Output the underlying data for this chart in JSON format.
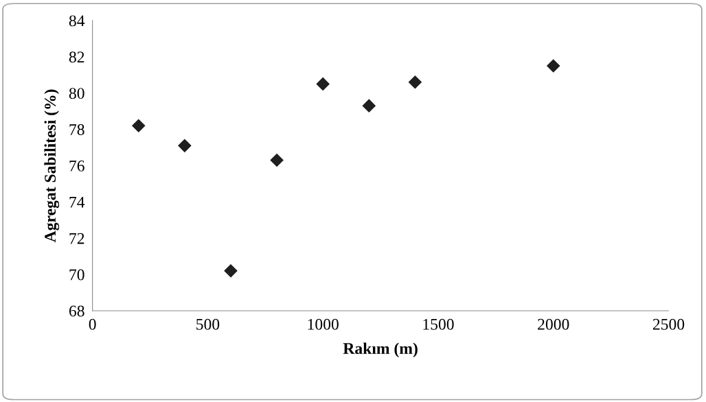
{
  "chart_data": {
    "type": "scatter",
    "xlabel": "Rakım (m)",
    "ylabel": "Agregat Sabilitesi (%)",
    "x": [
      200,
      400,
      600,
      800,
      1000,
      1200,
      1400,
      2000
    ],
    "values": [
      78.2,
      77.1,
      70.2,
      76.3,
      80.5,
      79.3,
      80.6,
      81.5
    ],
    "color": "#1f1f1f",
    "marker": "diamond",
    "xlim": [
      0,
      2500
    ],
    "xticks": [
      0,
      500,
      1000,
      1500,
      2000,
      2500
    ],
    "ylim": [
      68,
      84
    ],
    "yticks": [
      68,
      70,
      72,
      74,
      76,
      78,
      80,
      82,
      84
    ],
    "grid": false,
    "legend": false
  }
}
